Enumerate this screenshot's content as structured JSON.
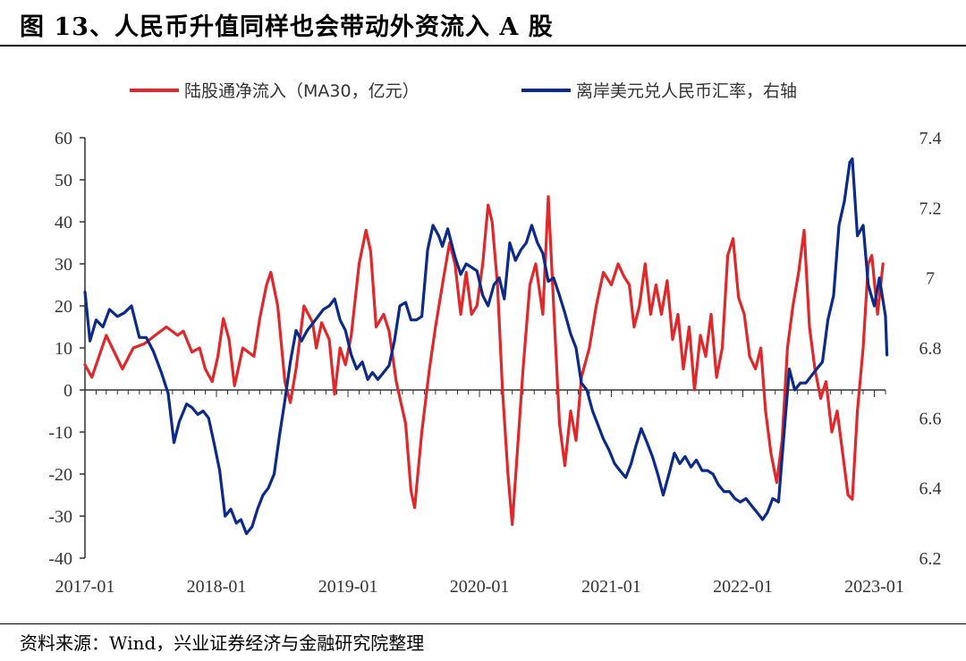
{
  "title": "图 13、人民币升值同样也会带动外资流入 A 股",
  "source": "资料来源：Wind，兴业证券经济与金融研究院整理",
  "colors": {
    "red": "#e0272a",
    "blue": "#0b2a8a",
    "axis": "#333333"
  },
  "chart_data": {
    "type": "line",
    "x_type": "date",
    "x_range": [
      "2017-01",
      "2023-02"
    ],
    "x_ticks": [
      "2017-01",
      "2018-01",
      "2019-01",
      "2020-01",
      "2021-01",
      "2022-01",
      "2023-01"
    ],
    "y_left": {
      "range": [
        -40,
        60
      ],
      "ticks": [
        "60",
        "50",
        "40",
        "30",
        "20",
        "10",
        "0",
        "-10",
        "-20",
        "-30",
        "-40"
      ]
    },
    "y_right": {
      "range": [
        6.2,
        7.4
      ],
      "ticks": [
        "7.4",
        "7.2",
        "7",
        "6.8",
        "6.6",
        "6.4",
        "6.2"
      ]
    },
    "legend_position": "top",
    "series": [
      {
        "name": "陆股通净流入（MA30，亿元）",
        "axis": "left",
        "color": "#e0272a",
        "points": [
          [
            "2017-01-01",
            6
          ],
          [
            "2017-01-20",
            3
          ],
          [
            "2017-03-01",
            13
          ],
          [
            "2017-04-15",
            5
          ],
          [
            "2017-05-15",
            10
          ],
          [
            "2017-06-15",
            11
          ],
          [
            "2017-07-15",
            13
          ],
          [
            "2017-08-15",
            15
          ],
          [
            "2017-09-15",
            13
          ],
          [
            "2017-10-01",
            14
          ],
          [
            "2017-10-25",
            9
          ],
          [
            "2017-11-15",
            10
          ],
          [
            "2017-12-01",
            5
          ],
          [
            "2017-12-20",
            2
          ],
          [
            "2018-01-05",
            8
          ],
          [
            "2018-01-20",
            17
          ],
          [
            "2018-02-05",
            12
          ],
          [
            "2018-02-20",
            1
          ],
          [
            "2018-03-15",
            10
          ],
          [
            "2018-04-15",
            8
          ],
          [
            "2018-05-01",
            17
          ],
          [
            "2018-05-20",
            25
          ],
          [
            "2018-06-01",
            28
          ],
          [
            "2018-06-20",
            20
          ],
          [
            "2018-07-10",
            2
          ],
          [
            "2018-07-25",
            -3
          ],
          [
            "2018-08-10",
            5
          ],
          [
            "2018-09-01",
            20
          ],
          [
            "2018-09-25",
            16
          ],
          [
            "2018-10-05",
            10
          ],
          [
            "2018-10-20",
            16
          ],
          [
            "2018-11-10",
            12
          ],
          [
            "2018-11-25",
            -1
          ],
          [
            "2018-12-10",
            10
          ],
          [
            "2018-12-25",
            6
          ],
          [
            "2019-01-10",
            13
          ],
          [
            "2019-02-01",
            30
          ],
          [
            "2019-02-20",
            38
          ],
          [
            "2019-03-05",
            33
          ],
          [
            "2019-03-20",
            15
          ],
          [
            "2019-04-10",
            18
          ],
          [
            "2019-04-25",
            14
          ],
          [
            "2019-05-15",
            2
          ],
          [
            "2019-06-10",
            -8
          ],
          [
            "2019-06-25",
            -24
          ],
          [
            "2019-07-05",
            -28
          ],
          [
            "2019-07-25",
            -10
          ],
          [
            "2019-08-15",
            5
          ],
          [
            "2019-09-01",
            15
          ],
          [
            "2019-09-20",
            25
          ],
          [
            "2019-10-10",
            35
          ],
          [
            "2019-10-25",
            30
          ],
          [
            "2019-11-10",
            18
          ],
          [
            "2019-11-25",
            28
          ],
          [
            "2019-12-10",
            18
          ],
          [
            "2019-12-25",
            20
          ],
          [
            "2020-01-10",
            30
          ],
          [
            "2020-01-25",
            44
          ],
          [
            "2020-02-05",
            40
          ],
          [
            "2020-02-20",
            25
          ],
          [
            "2020-03-05",
            0
          ],
          [
            "2020-03-20",
            -20
          ],
          [
            "2020-04-01",
            -32
          ],
          [
            "2020-04-15",
            -15
          ],
          [
            "2020-05-01",
            5
          ],
          [
            "2020-05-20",
            25
          ],
          [
            "2020-06-05",
            30
          ],
          [
            "2020-06-25",
            18
          ],
          [
            "2020-07-10",
            46
          ],
          [
            "2020-07-25",
            20
          ],
          [
            "2020-08-10",
            -8
          ],
          [
            "2020-08-25",
            -18
          ],
          [
            "2020-09-10",
            -5
          ],
          [
            "2020-09-25",
            -12
          ],
          [
            "2020-10-10",
            3
          ],
          [
            "2020-11-01",
            10
          ],
          [
            "2020-11-20",
            20
          ],
          [
            "2020-12-10",
            28
          ],
          [
            "2021-01-01",
            25
          ],
          [
            "2021-01-20",
            30
          ],
          [
            "2021-02-05",
            27
          ],
          [
            "2021-02-20",
            25
          ],
          [
            "2021-03-05",
            15
          ],
          [
            "2021-03-20",
            20
          ],
          [
            "2021-04-05",
            30
          ],
          [
            "2021-04-20",
            18
          ],
          [
            "2021-05-05",
            25
          ],
          [
            "2021-05-20",
            18
          ],
          [
            "2021-06-05",
            26
          ],
          [
            "2021-06-20",
            12
          ],
          [
            "2021-07-05",
            18
          ],
          [
            "2021-07-20",
            5
          ],
          [
            "2021-08-05",
            15
          ],
          [
            "2021-08-20",
            0
          ],
          [
            "2021-09-05",
            13
          ],
          [
            "2021-09-20",
            8
          ],
          [
            "2021-10-05",
            18
          ],
          [
            "2021-10-20",
            3
          ],
          [
            "2021-11-05",
            10
          ],
          [
            "2021-11-20",
            32
          ],
          [
            "2021-12-05",
            36
          ],
          [
            "2021-12-20",
            22
          ],
          [
            "2022-01-05",
            18
          ],
          [
            "2022-01-20",
            8
          ],
          [
            "2022-02-05",
            5
          ],
          [
            "2022-02-20",
            10
          ],
          [
            "2022-03-05",
            -5
          ],
          [
            "2022-03-20",
            -15
          ],
          [
            "2022-04-05",
            -22
          ],
          [
            "2022-04-20",
            -12
          ],
          [
            "2022-05-05",
            10
          ],
          [
            "2022-05-20",
            20
          ],
          [
            "2022-06-05",
            28
          ],
          [
            "2022-06-20",
            38
          ],
          [
            "2022-07-05",
            15
          ],
          [
            "2022-07-20",
            5
          ],
          [
            "2022-08-05",
            -2
          ],
          [
            "2022-08-20",
            2
          ],
          [
            "2022-09-05",
            -10
          ],
          [
            "2022-09-20",
            -5
          ],
          [
            "2022-10-05",
            -15
          ],
          [
            "2022-10-20",
            -25
          ],
          [
            "2022-11-01",
            -26
          ],
          [
            "2022-11-15",
            -5
          ],
          [
            "2022-12-01",
            10
          ],
          [
            "2022-12-15",
            30
          ],
          [
            "2022-12-25",
            32
          ],
          [
            "2023-01-10",
            18
          ],
          [
            "2023-01-25",
            30
          ]
        ]
      },
      {
        "name": "离岸美元兑人民币汇率，右轴",
        "axis": "right",
        "color": "#0b2a8a",
        "points": [
          [
            "2017-01-01",
            6.96
          ],
          [
            "2017-01-15",
            6.82
          ],
          [
            "2017-02-01",
            6.88
          ],
          [
            "2017-02-20",
            6.86
          ],
          [
            "2017-03-10",
            6.91
          ],
          [
            "2017-04-01",
            6.89
          ],
          [
            "2017-04-20",
            6.9
          ],
          [
            "2017-05-10",
            6.92
          ],
          [
            "2017-06-01",
            6.83
          ],
          [
            "2017-06-20",
            6.83
          ],
          [
            "2017-07-10",
            6.79
          ],
          [
            "2017-08-01",
            6.73
          ],
          [
            "2017-08-20",
            6.67
          ],
          [
            "2017-09-05",
            6.53
          ],
          [
            "2017-09-20",
            6.59
          ],
          [
            "2017-10-10",
            6.64
          ],
          [
            "2017-10-25",
            6.63
          ],
          [
            "2017-11-10",
            6.61
          ],
          [
            "2017-11-25",
            6.62
          ],
          [
            "2017-12-10",
            6.6
          ],
          [
            "2017-12-25",
            6.53
          ],
          [
            "2018-01-10",
            6.45
          ],
          [
            "2018-01-25",
            6.32
          ],
          [
            "2018-02-10",
            6.34
          ],
          [
            "2018-02-25",
            6.3
          ],
          [
            "2018-03-10",
            6.31
          ],
          [
            "2018-03-25",
            6.27
          ],
          [
            "2018-04-10",
            6.29
          ],
          [
            "2018-04-25",
            6.34
          ],
          [
            "2018-05-10",
            6.38
          ],
          [
            "2018-05-25",
            6.4
          ],
          [
            "2018-06-10",
            6.44
          ],
          [
            "2018-06-25",
            6.55
          ],
          [
            "2018-07-10",
            6.65
          ],
          [
            "2018-07-25",
            6.76
          ],
          [
            "2018-08-10",
            6.85
          ],
          [
            "2018-08-25",
            6.82
          ],
          [
            "2018-09-10",
            6.85
          ],
          [
            "2018-09-25",
            6.87
          ],
          [
            "2018-10-10",
            6.89
          ],
          [
            "2018-10-25",
            6.91
          ],
          [
            "2018-11-10",
            6.92
          ],
          [
            "2018-11-25",
            6.94
          ],
          [
            "2018-12-10",
            6.88
          ],
          [
            "2018-12-25",
            6.85
          ],
          [
            "2019-01-10",
            6.78
          ],
          [
            "2019-01-25",
            6.74
          ],
          [
            "2019-02-10",
            6.76
          ],
          [
            "2019-02-25",
            6.71
          ],
          [
            "2019-03-10",
            6.73
          ],
          [
            "2019-03-25",
            6.71
          ],
          [
            "2019-04-10",
            6.73
          ],
          [
            "2019-04-25",
            6.75
          ],
          [
            "2019-05-10",
            6.82
          ],
          [
            "2019-05-25",
            6.92
          ],
          [
            "2019-06-10",
            6.93
          ],
          [
            "2019-06-25",
            6.88
          ],
          [
            "2019-07-10",
            6.88
          ],
          [
            "2019-07-25",
            6.89
          ],
          [
            "2019-08-10",
            7.08
          ],
          [
            "2019-08-25",
            7.15
          ],
          [
            "2019-09-10",
            7.12
          ],
          [
            "2019-09-20",
            7.09
          ],
          [
            "2019-10-05",
            7.14
          ],
          [
            "2019-10-25",
            7.06
          ],
          [
            "2019-11-10",
            7.01
          ],
          [
            "2019-11-25",
            7.04
          ],
          [
            "2019-12-10",
            7.03
          ],
          [
            "2019-12-25",
            7.02
          ],
          [
            "2020-01-10",
            6.95
          ],
          [
            "2020-01-25",
            6.92
          ],
          [
            "2020-02-10",
            6.98
          ],
          [
            "2020-02-25",
            7.0
          ],
          [
            "2020-03-10",
            6.94
          ],
          [
            "2020-03-25",
            7.1
          ],
          [
            "2020-04-10",
            7.05
          ],
          [
            "2020-04-25",
            7.08
          ],
          [
            "2020-05-10",
            7.1
          ],
          [
            "2020-05-25",
            7.15
          ],
          [
            "2020-06-10",
            7.1
          ],
          [
            "2020-06-25",
            7.07
          ],
          [
            "2020-07-10",
            6.99
          ],
          [
            "2020-07-25",
            7.0
          ],
          [
            "2020-08-10",
            6.95
          ],
          [
            "2020-08-25",
            6.9
          ],
          [
            "2020-09-10",
            6.84
          ],
          [
            "2020-09-25",
            6.8
          ],
          [
            "2020-10-10",
            6.7
          ],
          [
            "2020-10-25",
            6.68
          ],
          [
            "2020-11-10",
            6.62
          ],
          [
            "2020-11-25",
            6.58
          ],
          [
            "2020-12-10",
            6.54
          ],
          [
            "2020-12-25",
            6.51
          ],
          [
            "2021-01-10",
            6.47
          ],
          [
            "2021-01-25",
            6.45
          ],
          [
            "2021-02-10",
            6.43
          ],
          [
            "2021-02-25",
            6.47
          ],
          [
            "2021-03-10",
            6.52
          ],
          [
            "2021-03-25",
            6.57
          ],
          [
            "2021-04-10",
            6.53
          ],
          [
            "2021-04-25",
            6.49
          ],
          [
            "2021-05-10",
            6.44
          ],
          [
            "2021-05-25",
            6.38
          ],
          [
            "2021-06-10",
            6.44
          ],
          [
            "2021-06-25",
            6.5
          ],
          [
            "2021-07-10",
            6.47
          ],
          [
            "2021-07-25",
            6.49
          ],
          [
            "2021-08-10",
            6.46
          ],
          [
            "2021-08-25",
            6.48
          ],
          [
            "2021-09-10",
            6.45
          ],
          [
            "2021-09-25",
            6.45
          ],
          [
            "2021-10-10",
            6.44
          ],
          [
            "2021-10-25",
            6.41
          ],
          [
            "2021-11-10",
            6.39
          ],
          [
            "2021-11-25",
            6.39
          ],
          [
            "2021-12-10",
            6.37
          ],
          [
            "2021-12-25",
            6.36
          ],
          [
            "2022-01-10",
            6.37
          ],
          [
            "2022-01-25",
            6.35
          ],
          [
            "2022-02-10",
            6.33
          ],
          [
            "2022-02-25",
            6.31
          ],
          [
            "2022-03-10",
            6.33
          ],
          [
            "2022-03-25",
            6.37
          ],
          [
            "2022-04-10",
            6.36
          ],
          [
            "2022-04-25",
            6.55
          ],
          [
            "2022-05-10",
            6.74
          ],
          [
            "2022-05-25",
            6.68
          ],
          [
            "2022-06-10",
            6.7
          ],
          [
            "2022-06-25",
            6.7
          ],
          [
            "2022-07-10",
            6.72
          ],
          [
            "2022-07-25",
            6.74
          ],
          [
            "2022-08-10",
            6.76
          ],
          [
            "2022-08-25",
            6.88
          ],
          [
            "2022-09-10",
            6.95
          ],
          [
            "2022-09-25",
            7.15
          ],
          [
            "2022-10-10",
            7.22
          ],
          [
            "2022-10-25",
            7.33
          ],
          [
            "2022-11-01",
            7.34
          ],
          [
            "2022-11-15",
            7.12
          ],
          [
            "2022-12-01",
            7.15
          ],
          [
            "2022-12-15",
            6.98
          ],
          [
            "2023-01-01",
            6.92
          ],
          [
            "2023-01-15",
            7.0
          ],
          [
            "2023-02-01",
            6.89
          ],
          [
            "2023-02-05",
            6.78
          ]
        ]
      }
    ]
  }
}
